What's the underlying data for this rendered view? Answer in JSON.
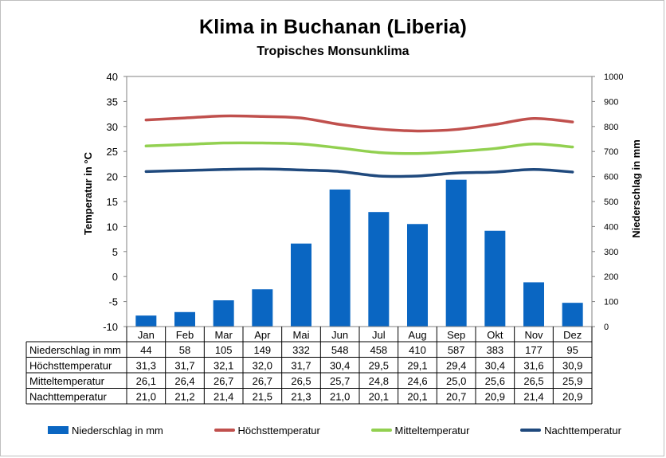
{
  "chart_data": {
    "type": "bar",
    "title": "Klima in Buchanan (Liberia)",
    "subtitle": "Tropisches Monsunklima",
    "ylabel": "Temperatur in °C",
    "y2label": "Niederschlag in mm",
    "ylim": [
      -10,
      40
    ],
    "y2lim": [
      0,
      1000
    ],
    "yticks": [
      -10,
      -5,
      0,
      5,
      10,
      15,
      20,
      25,
      30,
      35,
      40
    ],
    "y2ticks": [
      0,
      100,
      200,
      300,
      400,
      500,
      600,
      700,
      800,
      900,
      1000
    ],
    "categories": [
      "Jan",
      "Feb",
      "Mar",
      "Apr",
      "Mai",
      "Jun",
      "Jul",
      "Aug",
      "Sep",
      "Okt",
      "Nov",
      "Dez"
    ],
    "series": [
      {
        "name": "Niederschlag in mm",
        "type": "bar",
        "axis": "right",
        "color": "#0a66c2",
        "values": [
          44,
          58,
          105,
          149,
          332,
          548,
          458,
          410,
          587,
          383,
          177,
          95
        ],
        "labels": [
          "44",
          "58",
          "105",
          "149",
          "332",
          "548",
          "458",
          "410",
          "587",
          "383",
          "177",
          "95"
        ]
      },
      {
        "name": "Höchsttemperatur",
        "type": "line",
        "axis": "left",
        "color": "#c0504d",
        "values": [
          31.3,
          31.7,
          32.1,
          32.0,
          31.7,
          30.4,
          29.5,
          29.1,
          29.4,
          30.4,
          31.6,
          30.9
        ],
        "labels": [
          "31,3",
          "31,7",
          "32,1",
          "32,0",
          "31,7",
          "30,4",
          "29,5",
          "29,1",
          "29,4",
          "30,4",
          "31,6",
          "30,9"
        ]
      },
      {
        "name": "Mitteltemperatur",
        "type": "line",
        "axis": "left",
        "color": "#92d050",
        "values": [
          26.1,
          26.4,
          26.7,
          26.7,
          26.5,
          25.7,
          24.8,
          24.6,
          25.0,
          25.6,
          26.5,
          25.9
        ],
        "labels": [
          "26,1",
          "26,4",
          "26,7",
          "26,7",
          "26,5",
          "25,7",
          "24,8",
          "24,6",
          "25,0",
          "25,6",
          "26,5",
          "25,9"
        ]
      },
      {
        "name": "Nachttemperatur",
        "type": "line",
        "axis": "left",
        "color": "#1f497d",
        "values": [
          21.0,
          21.2,
          21.4,
          21.5,
          21.3,
          21.0,
          20.1,
          20.1,
          20.7,
          20.9,
          21.4,
          20.9
        ],
        "labels": [
          "21,0",
          "21,2",
          "21,4",
          "21,5",
          "21,3",
          "21,0",
          "20,1",
          "20,1",
          "20,7",
          "20,9",
          "21,4",
          "20,9"
        ]
      }
    ],
    "grid": false,
    "legend": "bottom"
  }
}
